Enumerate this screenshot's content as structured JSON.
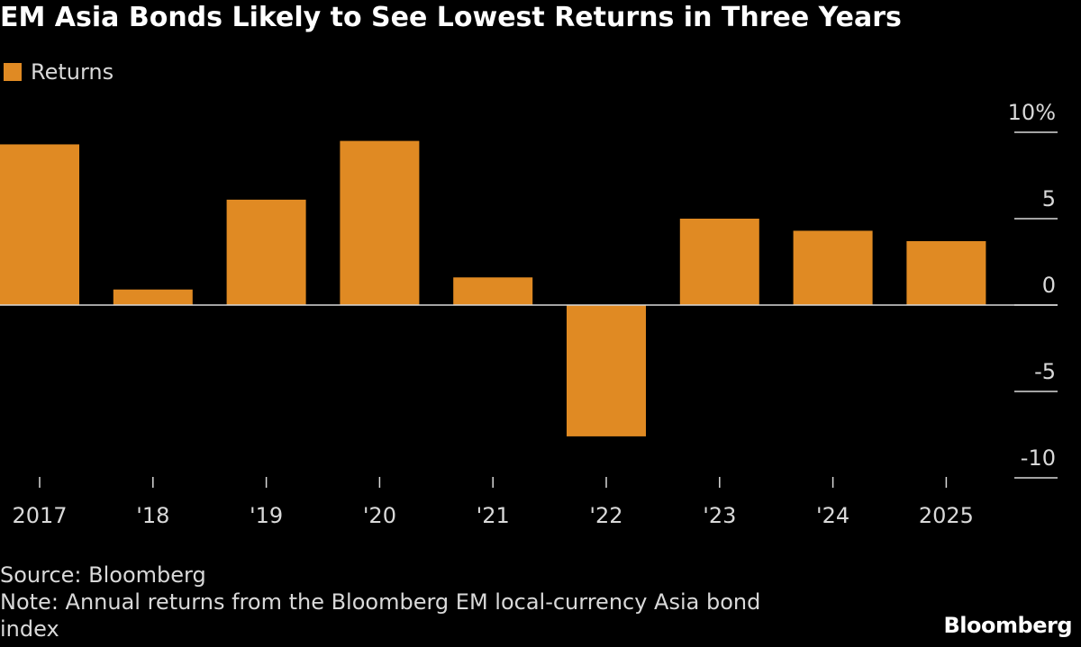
{
  "title": "EM Asia Bonds Likely to See Lowest Returns in Three Years",
  "legend": {
    "label": "Returns"
  },
  "colors": {
    "bar": "#E08A23",
    "background": "#000000",
    "axis": "#d9d9d9"
  },
  "chart_data": {
    "type": "bar",
    "title": "EM Asia Bonds Likely to See Lowest Returns in Three Years",
    "categories": [
      "2017",
      "'18",
      "'19",
      "'20",
      "'21",
      "'22",
      "'23",
      "'24",
      "2025"
    ],
    "series": [
      {
        "name": "Returns",
        "values": [
          9.3,
          0.9,
          6.1,
          9.5,
          1.6,
          -7.6,
          5.0,
          4.3,
          3.7
        ]
      }
    ],
    "ylim": [
      -10,
      10
    ],
    "yticks": [
      10,
      5,
      0,
      -5,
      -10
    ],
    "ytick_labels": [
      "10%",
      "5",
      "0",
      "-5",
      "-10"
    ],
    "xlabel": "",
    "ylabel": "",
    "grid": false,
    "legend_position": "top-left"
  },
  "footer": {
    "source": "Source: Bloomberg",
    "note": "Note: Annual returns from the Bloomberg EM local-currency Asia bond index"
  },
  "brand": "Bloomberg"
}
